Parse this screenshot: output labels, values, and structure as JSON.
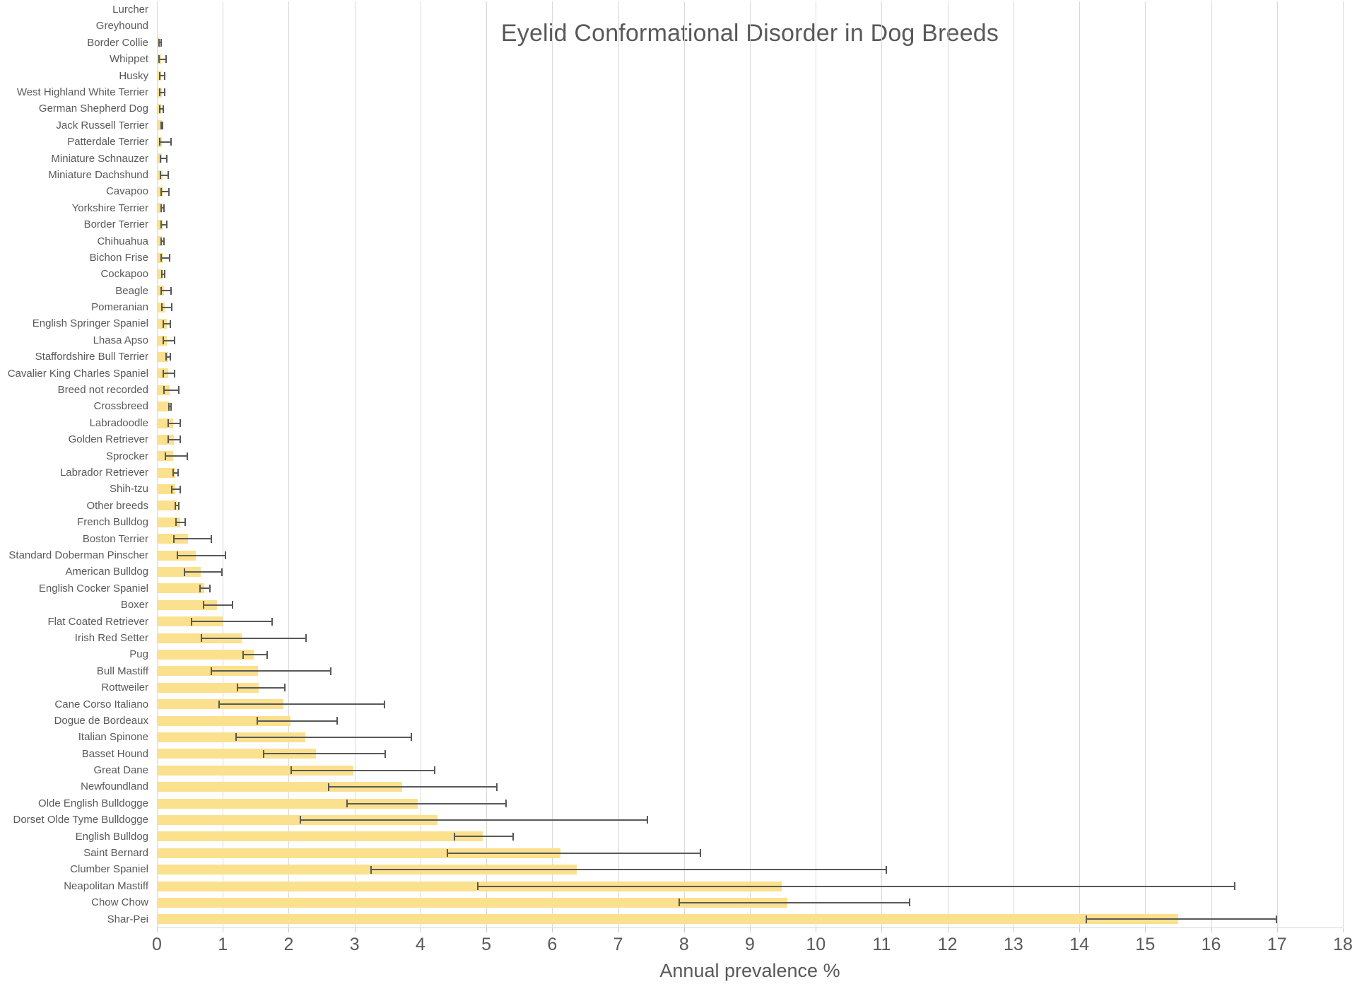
{
  "chart_data": {
    "type": "bar",
    "orientation": "horizontal",
    "title": "Eyelid Conformational Disorder in Dog Breeds",
    "xlabel": "Annual prevalence %",
    "xlim": [
      0,
      18
    ],
    "xticks": [
      0,
      1,
      2,
      3,
      4,
      5,
      6,
      7,
      8,
      9,
      10,
      11,
      12,
      13,
      14,
      15,
      16,
      17,
      18
    ],
    "grid": "vertical",
    "legend": "none",
    "bar_color": "#fbe08d",
    "error_bar_color": "#595959",
    "text_color": "#595959",
    "points": [
      {
        "label": "Lurcher",
        "value": 0,
        "ci": null
      },
      {
        "label": "Greyhound",
        "value": 0,
        "ci": null
      },
      {
        "label": "Border Collie",
        "value": 0.04,
        "ci": [
          0.02,
          0.08
        ]
      },
      {
        "label": "Whippet",
        "value": 0.06,
        "ci": [
          0.02,
          0.15
        ]
      },
      {
        "label": "Husky",
        "value": 0.06,
        "ci": [
          0.03,
          0.13
        ]
      },
      {
        "label": "West Highland White Terrier",
        "value": 0.07,
        "ci": [
          0.03,
          0.13
        ]
      },
      {
        "label": "German Shepherd Dog",
        "value": 0.06,
        "ci": [
          0.03,
          0.11
        ]
      },
      {
        "label": "Jack Russell Terrier",
        "value": 0.07,
        "ci": [
          0.05,
          0.1
        ]
      },
      {
        "label": "Patterdale Terrier",
        "value": 0.08,
        "ci": [
          0.03,
          0.23
        ]
      },
      {
        "label": "Miniature Schnauzer",
        "value": 0.08,
        "ci": [
          0.04,
          0.16
        ]
      },
      {
        "label": "Miniature Dachshund",
        "value": 0.09,
        "ci": [
          0.04,
          0.18
        ]
      },
      {
        "label": "Cavapoo",
        "value": 0.1,
        "ci": [
          0.05,
          0.19
        ]
      },
      {
        "label": "Yorkshire Terrier",
        "value": 0.08,
        "ci": [
          0.05,
          0.12
        ]
      },
      {
        "label": "Border Terrier",
        "value": 0.09,
        "ci": [
          0.05,
          0.16
        ]
      },
      {
        "label": "Chihuahua",
        "value": 0.08,
        "ci": [
          0.05,
          0.12
        ]
      },
      {
        "label": "Bichon Frise",
        "value": 0.1,
        "ci": [
          0.05,
          0.2
        ]
      },
      {
        "label": "Cockapoo",
        "value": 0.09,
        "ci": [
          0.06,
          0.13
        ]
      },
      {
        "label": "Beagle",
        "value": 0.11,
        "ci": [
          0.05,
          0.22
        ]
      },
      {
        "label": "Pomeranian",
        "value": 0.12,
        "ci": [
          0.06,
          0.24
        ]
      },
      {
        "label": "English Springer Spaniel",
        "value": 0.15,
        "ci": [
          0.09,
          0.22
        ]
      },
      {
        "label": "Lhasa Apso",
        "value": 0.15,
        "ci": [
          0.09,
          0.28
        ]
      },
      {
        "label": "Staffordshire Bull Terrier",
        "value": 0.17,
        "ci": [
          0.13,
          0.22
        ]
      },
      {
        "label": "Cavalier King Charles Spaniel",
        "value": 0.17,
        "ci": [
          0.09,
          0.28
        ]
      },
      {
        "label": "Breed not recorded",
        "value": 0.19,
        "ci": [
          0.1,
          0.34
        ]
      },
      {
        "label": "Crossbreed",
        "value": 0.19,
        "ci": [
          0.17,
          0.22
        ]
      },
      {
        "label": "Labradoodle",
        "value": 0.25,
        "ci": [
          0.16,
          0.37
        ]
      },
      {
        "label": "Golden Retriever",
        "value": 0.26,
        "ci": [
          0.16,
          0.37
        ]
      },
      {
        "label": "Sprocker",
        "value": 0.25,
        "ci": [
          0.12,
          0.47
        ]
      },
      {
        "label": "Labrador Retriever",
        "value": 0.28,
        "ci": [
          0.24,
          0.33
        ]
      },
      {
        "label": "Shih-tzu",
        "value": 0.28,
        "ci": [
          0.21,
          0.36
        ]
      },
      {
        "label": "Other breeds",
        "value": 0.3,
        "ci": [
          0.27,
          0.34
        ]
      },
      {
        "label": "French Bulldog",
        "value": 0.35,
        "ci": [
          0.28,
          0.44
        ]
      },
      {
        "label": "Boston Terrier",
        "value": 0.47,
        "ci": [
          0.25,
          0.84
        ]
      },
      {
        "label": "Standard Doberman Pinscher",
        "value": 0.59,
        "ci": [
          0.3,
          1.05
        ]
      },
      {
        "label": "American Bulldog",
        "value": 0.66,
        "ci": [
          0.41,
          1.0
        ]
      },
      {
        "label": "English Cocker Spaniel",
        "value": 0.72,
        "ci": [
          0.64,
          0.81
        ]
      },
      {
        "label": "Boxer",
        "value": 0.91,
        "ci": [
          0.7,
          1.16
        ]
      },
      {
        "label": "Flat Coated Retriever",
        "value": 1.0,
        "ci": [
          0.51,
          1.76
        ]
      },
      {
        "label": "Irish Red Setter",
        "value": 1.29,
        "ci": [
          0.66,
          2.27
        ]
      },
      {
        "label": "Pug",
        "value": 1.47,
        "ci": [
          1.3,
          1.68
        ]
      },
      {
        "label": "Bull Mastiff",
        "value": 1.53,
        "ci": [
          0.82,
          2.65
        ]
      },
      {
        "label": "Rottweiler",
        "value": 1.54,
        "ci": [
          1.21,
          1.95
        ]
      },
      {
        "label": "Cane Corso Italiano",
        "value": 1.92,
        "ci": [
          0.93,
          3.46
        ]
      },
      {
        "label": "Dogue de Bordeaux",
        "value": 2.03,
        "ci": [
          1.51,
          2.75
        ]
      },
      {
        "label": "Italian Spinone",
        "value": 2.25,
        "ci": [
          1.19,
          3.87
        ]
      },
      {
        "label": "Basset Hound",
        "value": 2.41,
        "ci": [
          1.61,
          3.48
        ]
      },
      {
        "label": "Great Dane",
        "value": 2.98,
        "ci": [
          2.03,
          4.23
        ]
      },
      {
        "label": "Newfoundland",
        "value": 3.72,
        "ci": [
          2.6,
          5.17
        ]
      },
      {
        "label": "Olde English Bulldogge",
        "value": 3.96,
        "ci": [
          2.87,
          5.31
        ]
      },
      {
        "label": "Dorset Olde Tyme Bulldogge",
        "value": 4.26,
        "ci": [
          2.17,
          7.46
        ]
      },
      {
        "label": "English Bulldog",
        "value": 4.94,
        "ci": [
          4.5,
          5.42
        ]
      },
      {
        "label": "Saint Bernard",
        "value": 6.13,
        "ci": [
          4.4,
          8.26
        ]
      },
      {
        "label": "Clumber Spaniel",
        "value": 6.37,
        "ci": [
          3.24,
          11.08
        ]
      },
      {
        "label": "Neapolitan Mastiff",
        "value": 9.48,
        "ci": [
          4.86,
          16.37
        ]
      },
      {
        "label": "Chow Chow",
        "value": 9.57,
        "ci": [
          7.92,
          11.44
        ]
      },
      {
        "label": "Shar-Pei",
        "value": 15.5,
        "ci": [
          14.1,
          17.0
        ]
      }
    ]
  }
}
